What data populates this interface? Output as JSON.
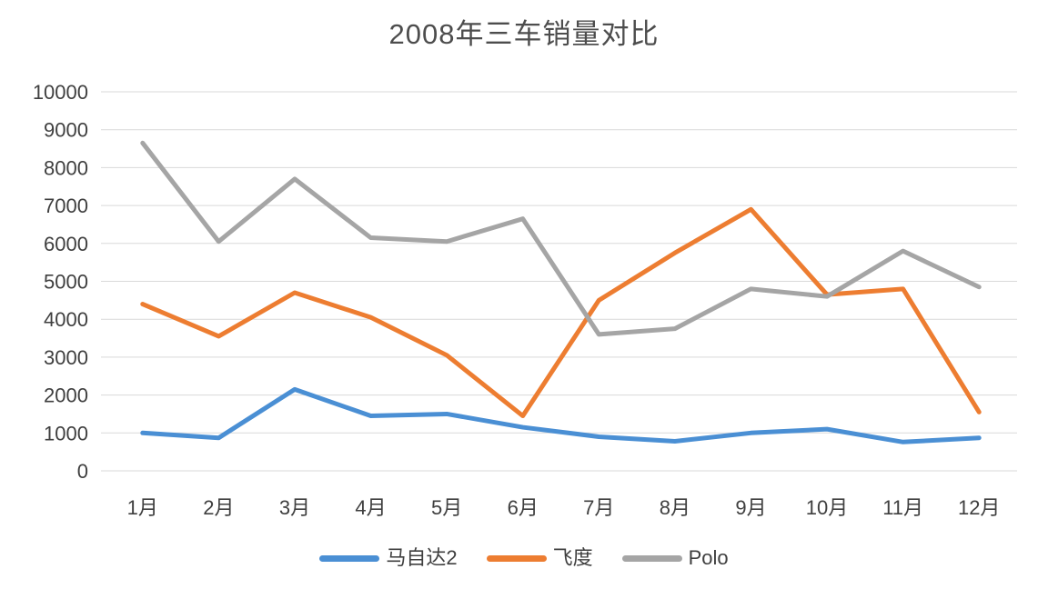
{
  "title": "2008年三车销量对比",
  "chart_data": {
    "type": "line",
    "title": "2008年三车销量对比",
    "categories": [
      "1月",
      "2月",
      "3月",
      "4月",
      "5月",
      "6月",
      "7月",
      "8月",
      "9月",
      "10月",
      "11月",
      "12月"
    ],
    "series": [
      {
        "name": "马自达2",
        "color": "#4A8FD4",
        "values": [
          1000,
          870,
          2150,
          1450,
          1500,
          1150,
          900,
          780,
          1000,
          1100,
          760,
          870
        ]
      },
      {
        "name": "飞度",
        "color": "#ED7D31",
        "values": [
          4400,
          3550,
          4700,
          4050,
          3050,
          1450,
          4500,
          5750,
          6900,
          4650,
          4800,
          1550
        ]
      },
      {
        "name": "Polo",
        "color": "#A5A5A5",
        "values": [
          8650,
          6050,
          7700,
          6150,
          6050,
          6650,
          3600,
          3750,
          4800,
          4600,
          5800,
          4850
        ]
      }
    ],
    "xlabel": "",
    "ylabel": "",
    "ylim": [
      0,
      10000
    ],
    "ytick_step": 1000,
    "ytick_labels": [
      "0",
      "1000",
      "2000",
      "3000",
      "4000",
      "5000",
      "6000",
      "7000",
      "8000",
      "9000",
      "10000"
    ],
    "grid": true,
    "legend_position": "bottom",
    "line_width": 5,
    "gridline_color": "#D9D9D9",
    "axis_text_color": "#3F3F3F",
    "title_color": "#4D4D4D",
    "background_color": "#FFFFFF"
  }
}
